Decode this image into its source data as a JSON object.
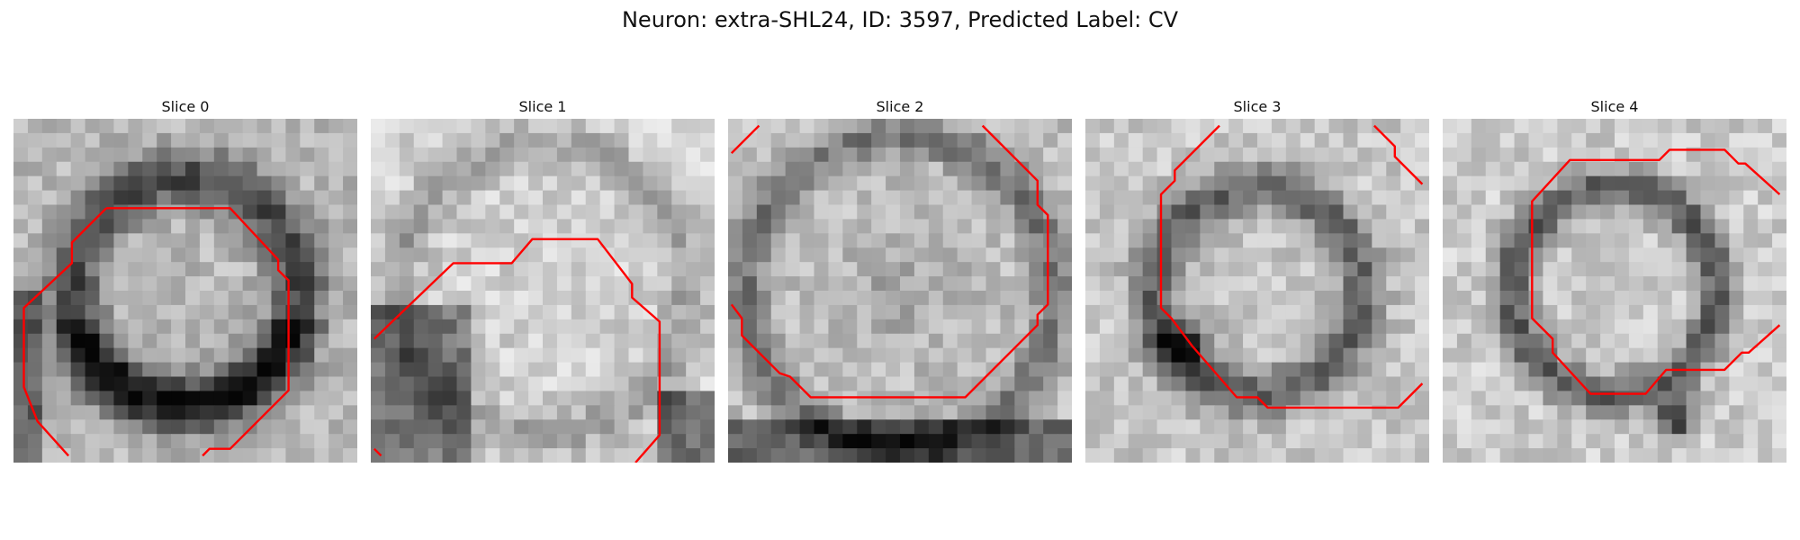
{
  "figure": {
    "title": "Neuron: extra-SHL24, ID: 3597, Predicted Label: CV",
    "contour_color": "#ff0000",
    "panels": [
      {
        "label": "Slice 0",
        "seed": 11,
        "pattern": "ring-lower",
        "contour": [
          [
            0.27,
            0.26
          ],
          [
            0.63,
            0.26
          ],
          [
            0.77,
            0.41
          ],
          [
            0.77,
            0.44
          ],
          [
            0.8,
            0.47
          ],
          [
            0.8,
            0.79
          ],
          [
            0.63,
            0.96
          ],
          [
            0.57,
            0.96
          ],
          [
            0.55,
            0.98
          ]
        ],
        "contour2": [
          [
            0.27,
            0.26
          ],
          [
            0.17,
            0.36
          ],
          [
            0.17,
            0.42
          ],
          [
            0.03,
            0.55
          ],
          [
            0.03,
            0.78
          ],
          [
            0.07,
            0.88
          ],
          [
            0.16,
            0.98
          ]
        ]
      },
      {
        "label": "Slice 1",
        "seed": 23,
        "pattern": "wedge",
        "contour": [
          [
            0.01,
            0.64
          ],
          [
            0.24,
            0.42
          ],
          [
            0.41,
            0.42
          ],
          [
            0.47,
            0.35
          ],
          [
            0.66,
            0.35
          ],
          [
            0.76,
            0.48
          ],
          [
            0.76,
            0.52
          ],
          [
            0.84,
            0.59
          ],
          [
            0.84,
            0.92
          ],
          [
            0.77,
            1.0
          ]
        ],
        "contour2": [
          [
            0.01,
            0.96
          ],
          [
            0.03,
            0.98
          ]
        ]
      },
      {
        "label": "Slice 2",
        "seed": 37,
        "pattern": "ring-big",
        "contour": [
          [
            0.74,
            0.02
          ],
          [
            0.9,
            0.18
          ],
          [
            0.9,
            0.25
          ],
          [
            0.93,
            0.28
          ],
          [
            0.93,
            0.54
          ],
          [
            0.9,
            0.57
          ],
          [
            0.9,
            0.6
          ],
          [
            0.69,
            0.81
          ],
          [
            0.24,
            0.81
          ],
          [
            0.18,
            0.75
          ],
          [
            0.15,
            0.74
          ],
          [
            0.04,
            0.63
          ],
          [
            0.04,
            0.58
          ],
          [
            0.01,
            0.54
          ]
        ],
        "contour2": [
          [
            0.01,
            0.1
          ],
          [
            0.09,
            0.02
          ]
        ]
      },
      {
        "label": "Slice 3",
        "seed": 51,
        "pattern": "ring-mid",
        "contour": [
          [
            0.39,
            0.02
          ],
          [
            0.26,
            0.15
          ],
          [
            0.26,
            0.18
          ],
          [
            0.22,
            0.22
          ],
          [
            0.22,
            0.55
          ],
          [
            0.25,
            0.58
          ],
          [
            0.31,
            0.66
          ],
          [
            0.44,
            0.81
          ],
          [
            0.5,
            0.81
          ],
          [
            0.53,
            0.84
          ],
          [
            0.91,
            0.84
          ],
          [
            0.98,
            0.77
          ]
        ],
        "contour2": [
          [
            0.84,
            0.02
          ],
          [
            0.9,
            0.08
          ],
          [
            0.9,
            0.11
          ],
          [
            0.98,
            0.19
          ]
        ]
      },
      {
        "label": "Slice 4",
        "seed": 67,
        "pattern": "ring-small",
        "contour": [
          [
            0.98,
            0.22
          ],
          [
            0.88,
            0.13
          ],
          [
            0.86,
            0.13
          ],
          [
            0.82,
            0.09
          ],
          [
            0.66,
            0.09
          ],
          [
            0.63,
            0.12
          ],
          [
            0.37,
            0.12
          ],
          [
            0.26,
            0.24
          ],
          [
            0.26,
            0.58
          ],
          [
            0.32,
            0.64
          ],
          [
            0.32,
            0.68
          ],
          [
            0.43,
            0.8
          ],
          [
            0.59,
            0.8
          ],
          [
            0.65,
            0.73
          ],
          [
            0.82,
            0.73
          ],
          [
            0.87,
            0.68
          ],
          [
            0.89,
            0.68
          ],
          [
            0.98,
            0.6
          ]
        ],
        "contour2": []
      }
    ]
  }
}
